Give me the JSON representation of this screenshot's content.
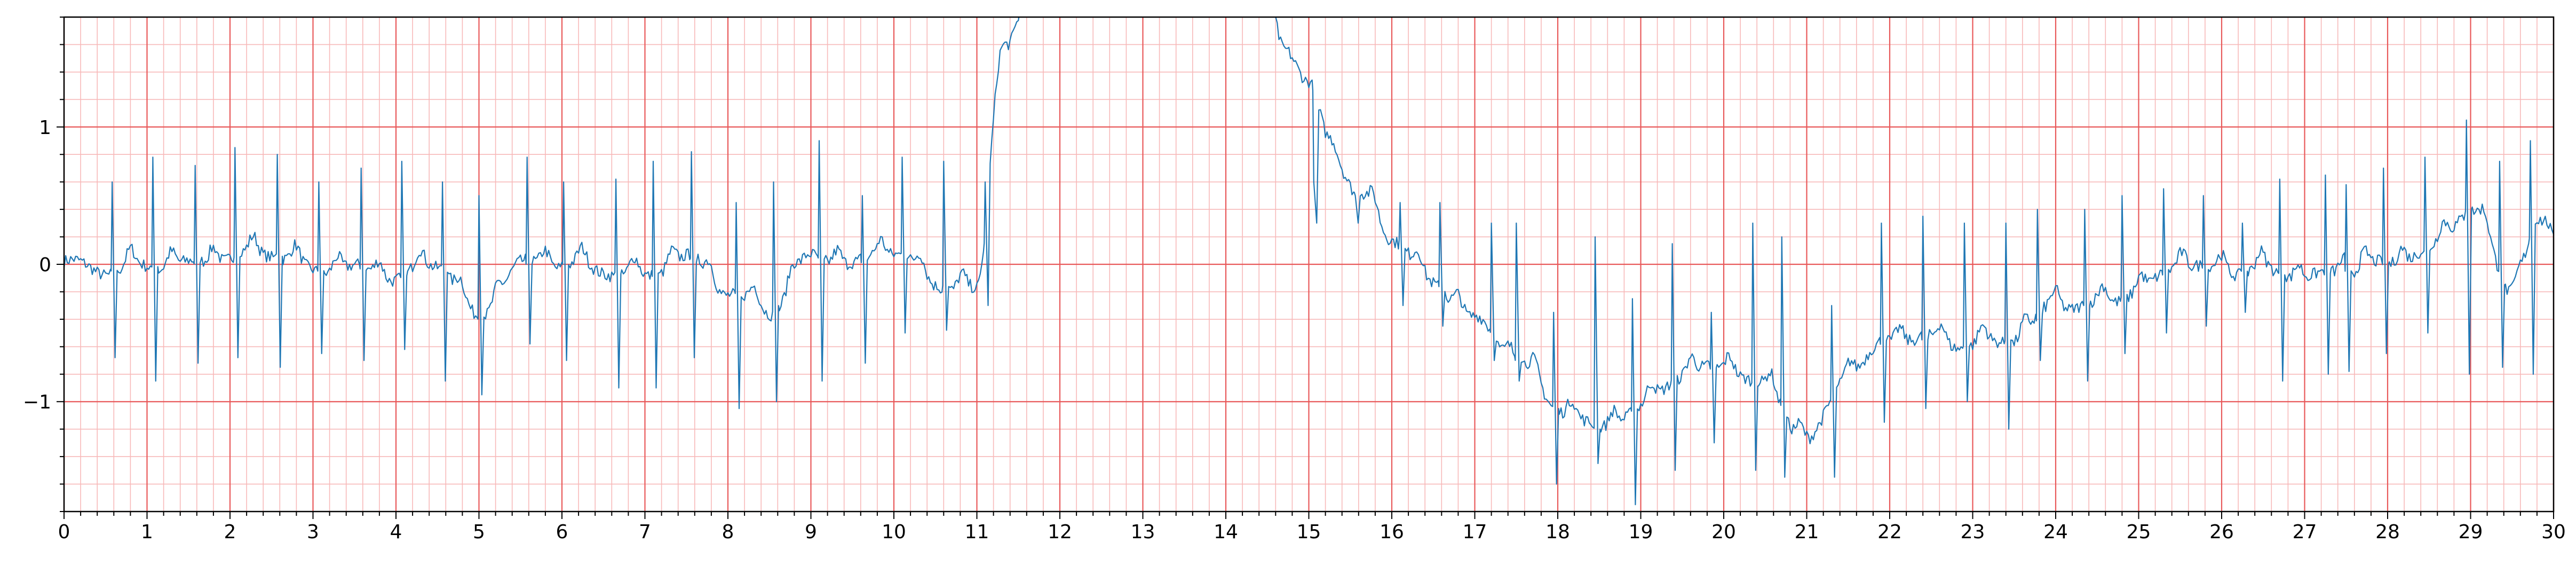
{
  "chart_data": {
    "type": "line",
    "title": "",
    "xlabel": "",
    "ylabel": "",
    "xlim": [
      0,
      30
    ],
    "ylim": [
      -1.8,
      1.8
    ],
    "x_ticks": [
      0,
      1,
      2,
      3,
      4,
      5,
      6,
      7,
      8,
      9,
      10,
      11,
      12,
      13,
      14,
      15,
      16,
      17,
      18,
      19,
      20,
      21,
      22,
      23,
      24,
      25,
      26,
      27,
      28,
      29,
      30
    ],
    "y_ticks": [
      -1,
      0,
      1
    ],
    "y_tick_labels": [
      "−1",
      "0",
      "1"
    ],
    "x_minor_step": 0.2,
    "y_minor_step": 0.2,
    "grid": true,
    "colors": {
      "line": "#1f77b4",
      "major_grid": "#e8595a",
      "minor_grid": "#f7b9b9",
      "axes": "#000000"
    },
    "series": [
      {
        "sample_step": 0.02,
        "baseline_knots": [
          [
            0,
            0.02
          ],
          [
            0.5,
            -0.05
          ],
          [
            1,
            -0.02
          ],
          [
            1.5,
            0.0
          ],
          [
            2,
            0.05
          ],
          [
            2.5,
            0.08
          ],
          [
            3,
            -0.05
          ],
          [
            3.5,
            -0.03
          ],
          [
            4,
            -0.1
          ],
          [
            4.5,
            0.0
          ],
          [
            5,
            -0.4
          ],
          [
            5.5,
            0.0
          ],
          [
            6,
            0.0
          ],
          [
            6.5,
            -0.05
          ],
          [
            7,
            -0.1
          ],
          [
            7.5,
            0.05
          ],
          [
            8,
            -0.2
          ],
          [
            8.5,
            -0.35
          ],
          [
            9,
            0.05
          ],
          [
            9.5,
            0.0
          ],
          [
            10,
            0.1
          ],
          [
            10.5,
            -0.15
          ],
          [
            11,
            -0.2
          ],
          [
            11.3,
            1.5
          ],
          [
            11.6,
            1.9
          ],
          [
            12,
            1.95
          ],
          [
            12.5,
            1.95
          ],
          [
            13,
            2.1
          ],
          [
            14,
            2.1
          ],
          [
            14.5,
            2.0
          ],
          [
            14.7,
            1.6
          ],
          [
            15,
            1.3
          ],
          [
            15.3,
            0.8
          ],
          [
            15.6,
            0.5
          ],
          [
            16,
            0.2
          ],
          [
            16.5,
            -0.15
          ],
          [
            17,
            -0.4
          ],
          [
            17.5,
            -0.7
          ],
          [
            18,
            -1.05
          ],
          [
            18.5,
            -1.2
          ],
          [
            19,
            -1.05
          ],
          [
            19.5,
            -0.8
          ],
          [
            20,
            -0.75
          ],
          [
            20.5,
            -0.9
          ],
          [
            21,
            -1.3
          ],
          [
            21.5,
            -0.8
          ],
          [
            22,
            -0.55
          ],
          [
            22.5,
            -0.55
          ],
          [
            23,
            -0.6
          ],
          [
            23.5,
            -0.55
          ],
          [
            24,
            -0.3
          ],
          [
            24.5,
            -0.3
          ],
          [
            25,
            -0.2
          ],
          [
            25.5,
            0.0
          ],
          [
            26,
            -0.05
          ],
          [
            26.5,
            -0.05
          ],
          [
            27,
            -0.1
          ],
          [
            27.5,
            -0.05
          ],
          [
            28,
            0.0
          ],
          [
            28.5,
            0.1
          ],
          [
            29,
            0.4
          ],
          [
            29.5,
            -0.2
          ],
          [
            29.8,
            0.3
          ],
          [
            30,
            0.1
          ]
        ],
        "beat_times": [
          0.58,
          1.07,
          1.58,
          2.06,
          2.57,
          3.07,
          3.58,
          4.07,
          4.56,
          5.0,
          5.58,
          6.02,
          6.65,
          7.1,
          7.56,
          8.1,
          8.55,
          9.1,
          9.62,
          10.1,
          10.6,
          11.1,
          15.06,
          15.56,
          16.1,
          16.58,
          17.2,
          17.5,
          17.95,
          18.45,
          18.9,
          19.38,
          19.85,
          20.35,
          20.7,
          21.3,
          21.9,
          22.4,
          22.9,
          23.4,
          23.78,
          24.35,
          24.8,
          25.3,
          25.78,
          26.25,
          26.7,
          27.25,
          27.5,
          27.95,
          28.45,
          28.95,
          29.35,
          29.72
        ],
        "beat_heights": [
          0.6,
          0.78,
          0.72,
          0.85,
          0.8,
          0.6,
          0.7,
          0.75,
          0.6,
          0.5,
          0.78,
          0.6,
          0.62,
          0.75,
          0.82,
          0.45,
          0.6,
          0.9,
          0.5,
          0.78,
          0.75,
          0.6,
          0.6,
          0.5,
          0.45,
          0.45,
          0.3,
          0.3,
          -0.35,
          0.2,
          -0.25,
          0.15,
          -0.35,
          0.3,
          0.2,
          -0.3,
          0.3,
          0.35,
          0.3,
          0.3,
          0.4,
          0.4,
          0.5,
          0.55,
          0.5,
          0.3,
          0.62,
          0.65,
          0.58,
          0.7,
          0.78,
          1.05,
          0.75,
          0.9
        ],
        "beat_dips": [
          -0.68,
          -0.85,
          -0.72,
          -0.68,
          -0.75,
          -0.65,
          -0.7,
          -0.62,
          -0.85,
          -0.95,
          -0.58,
          -0.7,
          -0.9,
          -0.9,
          -0.68,
          -1.05,
          -1.0,
          -0.85,
          -0.72,
          -0.5,
          -0.48,
          -0.3,
          0.3,
          0.3,
          -0.3,
          -0.45,
          -0.7,
          -0.85,
          -1.6,
          -1.45,
          -1.75,
          -1.5,
          -1.3,
          -1.5,
          -1.55,
          -1.55,
          -1.15,
          -1.05,
          -1.0,
          -1.2,
          -0.7,
          -0.85,
          -0.65,
          -0.5,
          -0.45,
          -0.35,
          -0.85,
          -0.8,
          -0.78,
          -0.65,
          -0.5,
          -0.8,
          -0.75,
          -0.8
        ]
      }
    ]
  }
}
